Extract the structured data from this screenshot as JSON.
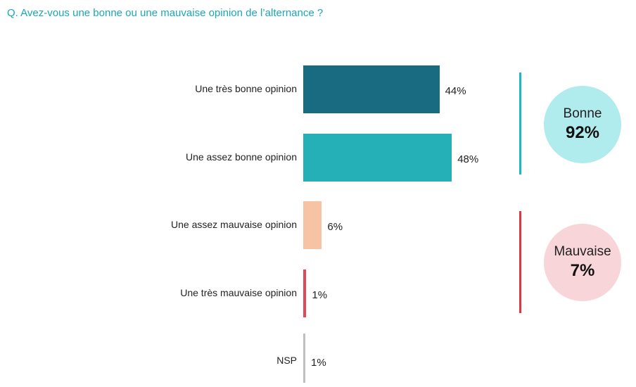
{
  "question": "Q. Avez-vous une bonne ou une mauvaise opinion de l’alternance ?",
  "chart_data": {
    "type": "bar",
    "orientation": "horizontal",
    "title": "Q. Avez-vous une bonne ou une mauvaise opinion de l’alternance ?",
    "categories": [
      "Une très bonne opinion",
      "Une assez bonne opinion",
      "Une assez mauvaise opinion",
      "Une très mauvaise opinion",
      "NSP"
    ],
    "values": [
      44,
      48,
      6,
      1,
      1
    ],
    "value_labels": [
      "44%",
      "48%",
      "6%",
      "1%",
      "1%"
    ],
    "colors": [
      "#186b80",
      "#24b0b6",
      "#f6c3a5",
      "#e04a57",
      "#c0c0c0"
    ],
    "unit": "%",
    "grid": false,
    "groups": [
      {
        "label": "Bonne",
        "value": "92%",
        "color": "#b0ecee",
        "bracket_color": "#20b5c0"
      },
      {
        "label": "Mauvaise",
        "value": "7%",
        "color": "#f8d5d8",
        "bracket_color": "#d93a47"
      }
    ]
  }
}
